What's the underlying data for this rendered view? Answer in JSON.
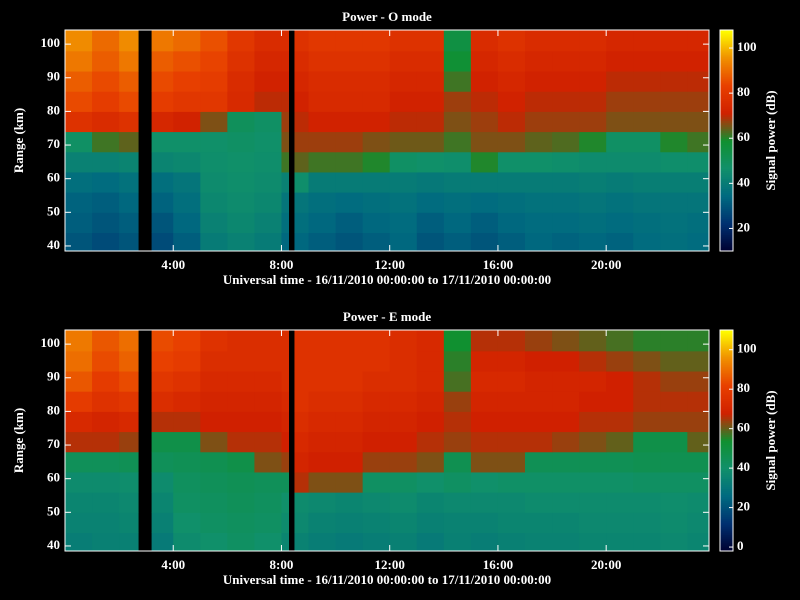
{
  "chart_data": [
    {
      "type": "heatmap",
      "title": "Power - O mode",
      "x_label": "Universal time - 16/11/2010 00:00:00 to 17/11/2010 00:00:00",
      "y_label": "Range (km)",
      "colorbar_label": "Signal power (dB)",
      "xlim": [
        0,
        23.8
      ],
      "ylim": [
        38.5,
        104.2
      ],
      "zlim": [
        10,
        108
      ],
      "xticks": [
        {
          "value": 4,
          "label": "4:00"
        },
        {
          "value": 8,
          "label": "8:00"
        },
        {
          "value": 12,
          "label": "12:00"
        },
        {
          "value": 16,
          "label": "16:00"
        },
        {
          "value": 20,
          "label": "20:00"
        }
      ],
      "yticks": [
        40,
        50,
        60,
        70,
        80,
        90,
        100
      ],
      "zticks": [
        20,
        40,
        60,
        80,
        100
      ],
      "colorscale": [
        "#000030",
        "#003070",
        "#006a80",
        "#10906a",
        "#109030",
        "#d02000",
        "#e84000",
        "#f09000",
        "#ffff00"
      ],
      "xbins": [
        0,
        1,
        2,
        2.7,
        3.2,
        4,
        5,
        6,
        7,
        8,
        8.26,
        8.48,
        9,
        10,
        11,
        12,
        13,
        14,
        15,
        16,
        17,
        18,
        19,
        20,
        21,
        22,
        23,
        23.8
      ],
      "ybins": [
        38.5,
        44,
        50,
        56,
        62,
        68,
        74,
        80,
        86,
        92,
        98,
        104.2
      ],
      "z": [
        [
          30,
          28,
          30,
          null,
          28,
          32,
          40,
          42,
          40,
          34,
          null,
          34,
          32,
          30,
          32,
          34,
          30,
          32,
          30,
          32,
          34,
          33,
          34,
          33,
          35,
          36,
          35
        ],
        [
          32,
          30,
          32,
          null,
          30,
          34,
          42,
          44,
          42,
          36,
          null,
          36,
          34,
          32,
          34,
          35,
          32,
          34,
          32,
          34,
          35,
          35,
          36,
          35,
          36,
          37,
          36
        ],
        [
          33,
          32,
          34,
          null,
          33,
          36,
          44,
          45,
          44,
          38,
          null,
          38,
          36,
          35,
          36,
          37,
          35,
          36,
          35,
          36,
          37,
          37,
          38,
          37,
          38,
          38,
          38
        ],
        [
          36,
          35,
          37,
          null,
          36,
          38,
          45,
          46,
          45,
          42,
          null,
          46,
          40,
          40,
          40,
          40,
          39,
          40,
          40,
          40,
          40,
          40,
          41,
          40,
          41,
          41,
          41
        ],
        [
          42,
          42,
          43,
          null,
          43,
          44,
          46,
          47,
          46,
          62,
          null,
          64,
          62,
          62,
          60,
          48,
          47,
          46,
          60,
          47,
          47,
          46,
          45,
          45,
          45,
          46,
          46
        ],
        [
          48,
          62,
          64,
          null,
          47,
          47,
          47,
          48,
          47,
          66,
          null,
          68,
          68,
          68,
          66,
          65,
          65,
          62,
          66,
          66,
          64,
          63,
          60,
          48,
          48,
          60,
          62
        ],
        [
          78,
          76,
          78,
          null,
          74,
          72,
          66,
          50,
          48,
          68,
          null,
          70,
          72,
          72,
          72,
          70,
          70,
          66,
          68,
          70,
          68,
          68,
          68,
          66,
          66,
          66,
          66
        ],
        [
          85,
          82,
          85,
          null,
          82,
          80,
          80,
          75,
          70,
          70,
          null,
          72,
          75,
          75,
          75,
          72,
          72,
          68,
          70,
          72,
          70,
          70,
          70,
          68,
          68,
          68,
          68
        ],
        [
          88,
          85,
          88,
          null,
          85,
          83,
          82,
          76,
          72,
          72,
          null,
          74,
          76,
          76,
          76,
          74,
          74,
          62,
          72,
          74,
          72,
          72,
          72,
          70,
          70,
          70,
          70
        ],
        [
          92,
          88,
          92,
          null,
          88,
          86,
          84,
          78,
          74,
          74,
          null,
          76,
          78,
          78,
          78,
          76,
          76,
          58,
          74,
          76,
          74,
          74,
          74,
          72,
          72,
          72,
          72
        ],
        [
          95,
          90,
          95,
          null,
          92,
          90,
          86,
          80,
          76,
          76,
          null,
          78,
          80,
          80,
          80,
          78,
          78,
          55,
          76,
          78,
          76,
          76,
          76,
          74,
          74,
          74,
          74
        ]
      ]
    },
    {
      "type": "heatmap",
      "title": "Power - E mode",
      "x_label": "Universal time - 16/11/2010 00:00:00 to 17/11/2010 00:00:00",
      "y_label": "Range (km)",
      "colorbar_label": "Signal power (dB)",
      "xlim": [
        0,
        23.8
      ],
      "ylim": [
        38.5,
        104.2
      ],
      "zlim": [
        -2,
        110
      ],
      "xticks": [
        {
          "value": 4,
          "label": "4:00"
        },
        {
          "value": 8,
          "label": "8:00"
        },
        {
          "value": 12,
          "label": "12:00"
        },
        {
          "value": 16,
          "label": "16:00"
        },
        {
          "value": 20,
          "label": "20:00"
        }
      ],
      "yticks": [
        40,
        50,
        60,
        70,
        80,
        90,
        100
      ],
      "zticks": [
        0,
        20,
        40,
        60,
        80,
        100
      ],
      "colorscale": [
        "#000030",
        "#003070",
        "#006a80",
        "#10906a",
        "#109030",
        "#d02000",
        "#e84000",
        "#f09000",
        "#ffff00"
      ],
      "xbins": [
        0,
        1,
        2,
        2.7,
        3.2,
        4,
        5,
        6,
        7,
        8,
        8.26,
        8.48,
        9,
        10,
        11,
        12,
        13,
        14,
        15,
        16,
        17,
        18,
        19,
        20,
        21,
        22,
        23,
        23.8
      ],
      "ybins": [
        38.5,
        44,
        50,
        56,
        62,
        68,
        74,
        80,
        86,
        92,
        98,
        104.2
      ],
      "z": [
        [
          33,
          34,
          34,
          null,
          32,
          38,
          40,
          42,
          40,
          36,
          null,
          35,
          33,
          32,
          33,
          34,
          32,
          34,
          33,
          34,
          35,
          35,
          36,
          36,
          36,
          37,
          36
        ],
        [
          35,
          35,
          36,
          null,
          34,
          40,
          42,
          43,
          42,
          38,
          null,
          37,
          35,
          34,
          35,
          36,
          34,
          35,
          35,
          36,
          36,
          36,
          37,
          37,
          37,
          38,
          37
        ],
        [
          36,
          36,
          37,
          null,
          36,
          42,
          43,
          44,
          43,
          40,
          null,
          38,
          37,
          36,
          37,
          38,
          36,
          37,
          37,
          37,
          38,
          38,
          38,
          38,
          38,
          39,
          38
        ],
        [
          38,
          38,
          39,
          null,
          38,
          43,
          44,
          45,
          44,
          44,
          null,
          66,
          62,
          62,
          42,
          42,
          40,
          42,
          40,
          41,
          41,
          41,
          41,
          41,
          42,
          42,
          42
        ],
        [
          44,
          44,
          45,
          null,
          44,
          45,
          46,
          48,
          62,
          64,
          null,
          70,
          68,
          68,
          64,
          64,
          62,
          46,
          62,
          62,
          45,
          45,
          45,
          45,
          46,
          46,
          46
        ],
        [
          66,
          66,
          64,
          null,
          48,
          48,
          62,
          66,
          66,
          68,
          null,
          72,
          70,
          70,
          68,
          68,
          66,
          64,
          66,
          66,
          66,
          64,
          62,
          60,
          48,
          48,
          60
        ],
        [
          72,
          70,
          72,
          null,
          66,
          66,
          68,
          68,
          68,
          70,
          null,
          74,
          72,
          72,
          70,
          70,
          68,
          66,
          68,
          68,
          68,
          68,
          66,
          66,
          64,
          64,
          64
        ],
        [
          80,
          76,
          78,
          null,
          74,
          72,
          70,
          70,
          70,
          72,
          null,
          76,
          74,
          74,
          72,
          72,
          70,
          64,
          70,
          70,
          70,
          70,
          68,
          68,
          66,
          66,
          66
        ],
        [
          86,
          80,
          84,
          null,
          78,
          76,
          72,
          72,
          72,
          74,
          null,
          76,
          76,
          76,
          74,
          74,
          72,
          58,
          72,
          72,
          70,
          70,
          70,
          68,
          66,
          64,
          64
        ],
        [
          90,
          84,
          88,
          null,
          82,
          80,
          74,
          74,
          74,
          74,
          null,
          76,
          76,
          76,
          76,
          74,
          72,
          56,
          70,
          70,
          68,
          68,
          66,
          64,
          62,
          60,
          60
        ],
        [
          92,
          86,
          90,
          null,
          84,
          82,
          76,
          74,
          74,
          74,
          null,
          76,
          76,
          76,
          76,
          74,
          72,
          54,
          66,
          66,
          64,
          62,
          60,
          58,
          56,
          56,
          56
        ]
      ]
    }
  ]
}
